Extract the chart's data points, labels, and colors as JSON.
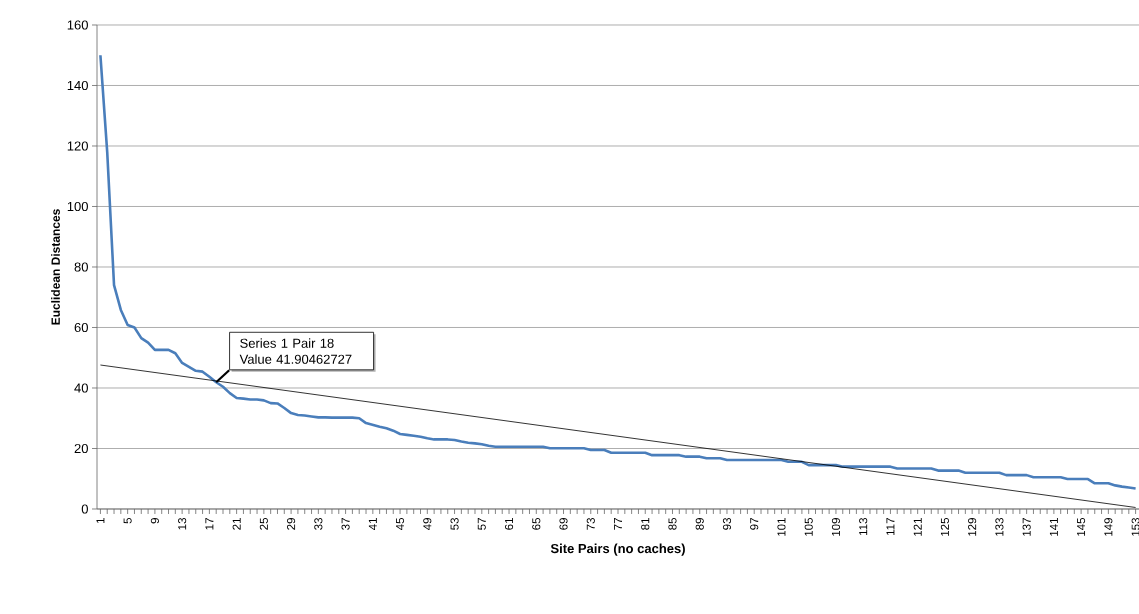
{
  "chart_data": {
    "type": "line",
    "xlabel": "Site Pairs (no caches)",
    "ylabel": "Euclidean Distances",
    "annotations": [
      {
        "text": "Series 1 Pair 18 Value 41.90462727",
        "x": 18,
        "y": 41.90462727
      }
    ],
    "x": [
      1,
      2,
      3,
      4,
      5,
      6,
      7,
      8,
      9,
      10,
      11,
      12,
      13,
      14,
      15,
      16,
      17,
      18,
      19,
      20,
      21,
      22,
      23,
      24,
      25,
      26,
      27,
      28,
      29,
      30,
      31,
      32,
      33,
      34,
      35,
      36,
      37,
      38,
      39,
      40,
      41,
      42,
      43,
      44,
      45,
      46,
      47,
      48,
      49,
      50,
      51,
      52,
      53,
      54,
      55,
      56,
      57,
      58,
      59,
      60,
      61,
      62,
      63,
      64,
      65,
      66,
      67,
      68,
      69,
      70,
      71,
      72,
      73,
      74,
      75,
      76,
      77,
      78,
      79,
      80,
      81,
      82,
      83,
      84,
      85,
      86,
      87,
      88,
      89,
      90,
      91,
      92,
      93,
      94,
      95,
      96,
      97,
      98,
      99,
      100,
      101,
      102,
      103,
      104,
      105,
      106,
      107,
      108,
      109,
      110,
      111,
      112,
      113,
      114,
      115,
      116,
      117,
      118,
      119,
      120,
      121,
      122,
      123,
      124,
      125,
      126,
      127,
      128,
      129,
      130,
      131,
      132,
      133,
      134,
      135,
      136,
      137,
      138,
      139,
      140,
      141,
      142,
      143,
      144,
      145,
      146,
      147,
      148,
      149,
      150,
      151,
      152,
      153
    ],
    "series": [
      {
        "color": "#4a7ebb",
        "values": [
          150,
          118,
          74,
          65.8,
          60.8,
          60,
          56.5,
          55,
          52.6,
          52.6,
          52.6,
          51.5,
          48.3,
          47,
          45.7,
          45.4,
          43.7,
          41.90462727,
          40.4,
          38.3,
          36.7,
          36.5,
          36.2,
          36.2,
          35.9,
          35,
          34.9,
          33.4,
          31.7,
          31.1,
          30.9,
          30.6,
          30.3,
          30.3,
          30.2,
          30.2,
          30.2,
          30.2,
          30,
          28.4,
          27.8,
          27.2,
          26.7,
          25.9,
          24.8,
          24.5,
          24.2,
          23.9,
          23.4,
          23,
          23,
          23,
          22.8,
          22.3,
          21.9,
          21.7,
          21.4,
          20.9,
          20.6,
          20.6,
          20.6,
          20.6,
          20.6,
          20.6,
          20.6,
          20.6,
          20.1,
          20.1,
          20.1,
          20.1,
          20.1,
          20.1,
          19.5,
          19.5,
          19.5,
          18.6,
          18.6,
          18.6,
          18.6,
          18.6,
          18.6,
          17.8,
          17.8,
          17.8,
          17.8,
          17.8,
          17.3,
          17.3,
          17.3,
          16.8,
          16.8,
          16.8,
          16.2,
          16.2,
          16.2,
          16.2,
          16.2,
          16.2,
          16.2,
          16.2,
          16.2,
          15.6,
          15.6,
          15.6,
          14.5,
          14.5,
          14.5,
          14.5,
          14.5,
          14,
          14,
          14,
          14,
          14,
          14,
          14,
          14,
          13.4,
          13.4,
          13.4,
          13.4,
          13.4,
          13.4,
          12.7,
          12.7,
          12.7,
          12.7,
          12,
          12,
          12,
          12,
          12,
          12,
          11.2,
          11.2,
          11.2,
          11.2,
          10.5,
          10.5,
          10.5,
          10.5,
          10.5,
          9.9,
          9.9,
          9.9,
          9.9,
          8.5,
          8.5,
          8.5,
          7.8,
          7.4,
          7.1,
          6.8
        ]
      },
      {
        "type": "line",
        "color": "#000000",
        "x": [
          1,
          153
        ],
        "values": [
          47.6,
          0.5
        ]
      }
    ],
    "xlim": [
      0.5,
      153.5
    ],
    "xticks": [
      1,
      {
        "value": 2,
        "label": null
      },
      {
        "value": 3,
        "label": null
      },
      {
        "value": 4,
        "label": null
      },
      5,
      {
        "value": 6,
        "label": null
      },
      {
        "value": 7,
        "label": null
      },
      {
        "value": 8,
        "label": null
      },
      9,
      {
        "value": 10,
        "label": null
      },
      {
        "value": 11,
        "label": null
      },
      {
        "value": 12,
        "label": null
      },
      13,
      {
        "value": 14,
        "label": null
      },
      {
        "value": 15,
        "label": null
      },
      {
        "value": 16,
        "label": null
      },
      17,
      {
        "value": 18,
        "label": null
      },
      {
        "value": 19,
        "label": null
      },
      {
        "value": 20,
        "label": null
      },
      21,
      {
        "value": 22,
        "label": null
      },
      {
        "value": 23,
        "label": null
      },
      {
        "value": 24,
        "label": null
      },
      25,
      {
        "value": 26,
        "label": null
      },
      {
        "value": 27,
        "label": null
      },
      {
        "value": 28,
        "label": null
      },
      29,
      {
        "value": 30,
        "label": null
      },
      {
        "value": 31,
        "label": null
      },
      {
        "value": 32,
        "label": null
      },
      33,
      {
        "value": 34,
        "label": null
      },
      {
        "value": 35,
        "label": null
      },
      {
        "value": 36,
        "label": null
      },
      37,
      {
        "value": 38,
        "label": null
      },
      {
        "value": 39,
        "label": null
      },
      {
        "value": 40,
        "label": null
      },
      41,
      {
        "value": 42,
        "label": null
      },
      {
        "value": 43,
        "label": null
      },
      {
        "value": 44,
        "label": null
      },
      45,
      {
        "value": 46,
        "label": null
      },
      {
        "value": 47,
        "label": null
      },
      {
        "value": 48,
        "label": null
      },
      49,
      {
        "value": 50,
        "label": null
      },
      {
        "value": 51,
        "label": null
      },
      {
        "value": 52,
        "label": null
      },
      53,
      {
        "value": 54,
        "label": null
      },
      {
        "value": 55,
        "label": null
      },
      {
        "value": 56,
        "label": null
      },
      57,
      {
        "value": 58,
        "label": null
      },
      {
        "value": 59,
        "label": null
      },
      {
        "value": 60,
        "label": null
      },
      61,
      {
        "value": 62,
        "label": null
      },
      {
        "value": 63,
        "label": null
      },
      {
        "value": 64,
        "label": null
      },
      65,
      {
        "value": 66,
        "label": null
      },
      {
        "value": 67,
        "label": null
      },
      {
        "value": 68,
        "label": null
      },
      69,
      {
        "value": 70,
        "label": null
      },
      {
        "value": 71,
        "label": null
      },
      {
        "value": 72,
        "label": null
      },
      73,
      {
        "value": 74,
        "label": null
      },
      {
        "value": 75,
        "label": null
      },
      {
        "value": 76,
        "label": null
      },
      77,
      {
        "value": 78,
        "label": null
      },
      {
        "value": 79,
        "label": null
      },
      {
        "value": 80,
        "label": null
      },
      81,
      {
        "value": 82,
        "label": null
      },
      {
        "value": 83,
        "label": null
      },
      {
        "value": 84,
        "label": null
      },
      85,
      {
        "value": 86,
        "label": null
      },
      {
        "value": 87,
        "label": null
      },
      {
        "value": 88,
        "label": null
      },
      89,
      {
        "value": 90,
        "label": null
      },
      {
        "value": 91,
        "label": null
      },
      {
        "value": 92,
        "label": null
      },
      93,
      {
        "value": 94,
        "label": null
      },
      {
        "value": 95,
        "label": null
      },
      {
        "value": 96,
        "label": null
      },
      97,
      {
        "value": 98,
        "label": null
      },
      {
        "value": 99,
        "label": null
      },
      {
        "value": 100,
        "label": null
      },
      101,
      {
        "value": 102,
        "label": null
      },
      {
        "value": 103,
        "label": null
      },
      {
        "value": 104,
        "label": null
      },
      105,
      {
        "value": 106,
        "label": null
      },
      {
        "value": 107,
        "label": null
      },
      {
        "value": 108,
        "label": null
      },
      109,
      {
        "value": 110,
        "label": null
      },
      {
        "value": 111,
        "label": null
      },
      {
        "value": 112,
        "label": null
      },
      113,
      {
        "value": 114,
        "label": null
      },
      {
        "value": 115,
        "label": null
      },
      {
        "value": 116,
        "label": null
      },
      117,
      {
        "value": 118,
        "label": null
      },
      {
        "value": 119,
        "label": null
      },
      {
        "value": 120,
        "label": null
      },
      121,
      {
        "value": 122,
        "label": null
      },
      {
        "value": 123,
        "label": null
      },
      {
        "value": 124,
        "label": null
      },
      125,
      {
        "value": 126,
        "label": null
      },
      {
        "value": 127,
        "label": null
      },
      {
        "value": 128,
        "label": null
      },
      129,
      {
        "value": 130,
        "label": null
      },
      {
        "value": 131,
        "label": null
      },
      {
        "value": 132,
        "label": null
      },
      133,
      {
        "value": 134,
        "label": null
      },
      {
        "value": 135,
        "label": null
      },
      {
        "value": 136,
        "label": null
      },
      137,
      {
        "value": 138,
        "label": null
      },
      {
        "value": 139,
        "label": null
      },
      {
        "value": 140,
        "label": null
      },
      141,
      {
        "value": 142,
        "label": null
      },
      {
        "value": 143,
        "label": null
      },
      {
        "value": 144,
        "label": null
      },
      145,
      {
        "value": 146,
        "label": null
      },
      {
        "value": 147,
        "label": null
      },
      {
        "value": 148,
        "label": null
      },
      149,
      {
        "value": 150,
        "label": null
      },
      {
        "value": 151,
        "label": null
      },
      {
        "value": 152,
        "label": null
      },
      153
    ],
    "ylim": [
      0,
      160
    ],
    "yticks": [
      0,
      20,
      40,
      60,
      80,
      100,
      120,
      140,
      160
    ],
    "grid": "y",
    "marker": "none",
    "line_style": "solid"
  }
}
